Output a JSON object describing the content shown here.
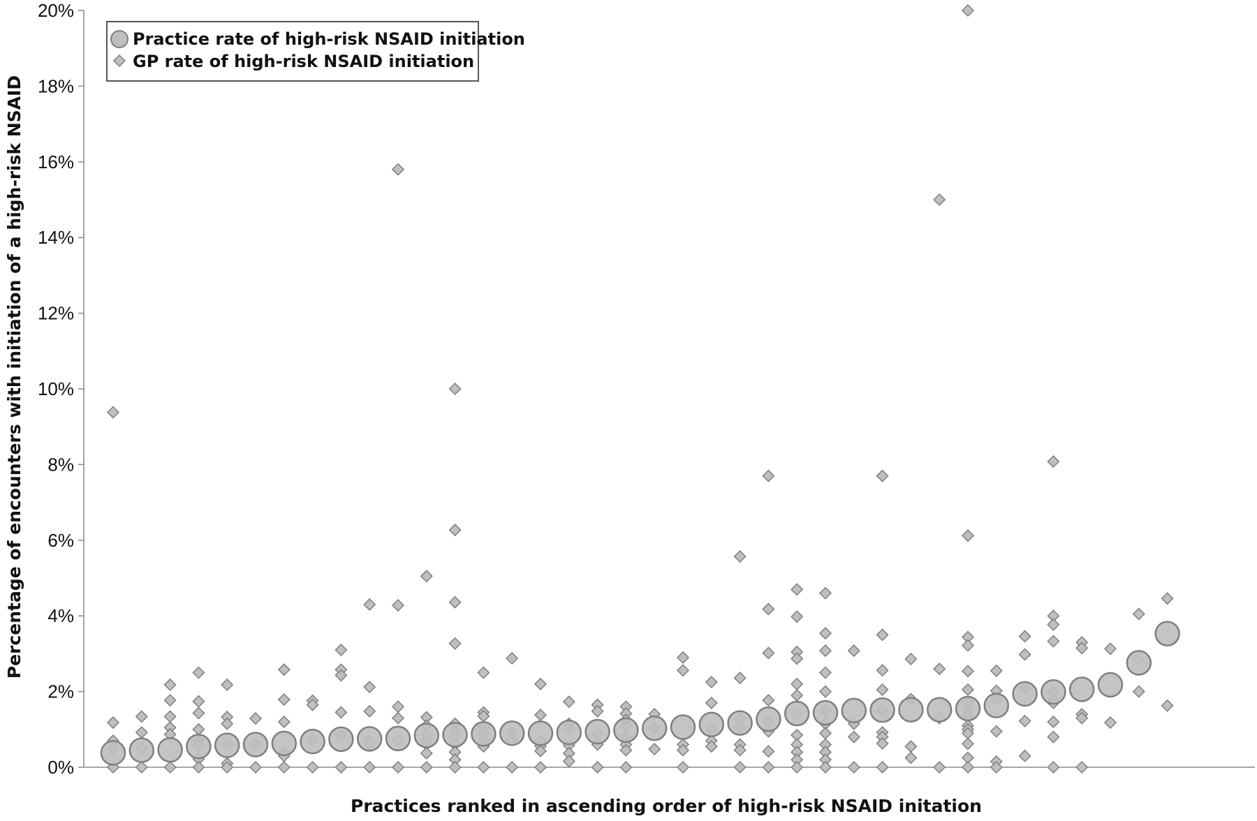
{
  "chart_data": {
    "type": "scatter",
    "xlabel": "Practices ranked in ascending order of high-risk NSAID initation",
    "ylabel": "Percentage of encounters with initiation of a high-risk NSAID",
    "ylim": [
      0,
      20
    ],
    "yticks": [
      "0%",
      "2%",
      "4%",
      "6%",
      "8%",
      "10%",
      "12%",
      "14%",
      "16%",
      "18%",
      "20%"
    ],
    "grid": false,
    "legend_position": "top-left",
    "colors": {
      "fill": "#bfbfbf",
      "stroke": "#7f7f7f"
    },
    "series": [
      {
        "name": "Practice rate of high-risk NSAID initiation",
        "marker": "circle",
        "points": [
          [
            1,
            0.38
          ],
          [
            2,
            0.45
          ],
          [
            3,
            0.46
          ],
          [
            4,
            0.55
          ],
          [
            5,
            0.58
          ],
          [
            6,
            0.6
          ],
          [
            7,
            0.63
          ],
          [
            8,
            0.68
          ],
          [
            9,
            0.74
          ],
          [
            10,
            0.75
          ],
          [
            11,
            0.76
          ],
          [
            12,
            0.84
          ],
          [
            13,
            0.86
          ],
          [
            14,
            0.88
          ],
          [
            15,
            0.9
          ],
          [
            16,
            0.9
          ],
          [
            17,
            0.92
          ],
          [
            18,
            0.94
          ],
          [
            19,
            0.98
          ],
          [
            20,
            1.03
          ],
          [
            21,
            1.06
          ],
          [
            22,
            1.13
          ],
          [
            23,
            1.17
          ],
          [
            24,
            1.27
          ],
          [
            25,
            1.42
          ],
          [
            26,
            1.44
          ],
          [
            27,
            1.5
          ],
          [
            28,
            1.51
          ],
          [
            29,
            1.52
          ],
          [
            30,
            1.52
          ],
          [
            31,
            1.55
          ],
          [
            32,
            1.63
          ],
          [
            33,
            1.94
          ],
          [
            34,
            1.99
          ],
          [
            35,
            2.06
          ],
          [
            36,
            2.18
          ],
          [
            37,
            2.76
          ],
          [
            38,
            3.53
          ]
        ]
      },
      {
        "name": "GP rate of high-risk NSAID initiation",
        "marker": "diamond",
        "points": [
          [
            1,
            9.38
          ],
          [
            1,
            1.18
          ],
          [
            1,
            0.7
          ],
          [
            1,
            0.5
          ],
          [
            1,
            0.0
          ],
          [
            2,
            1.34
          ],
          [
            2,
            0.92
          ],
          [
            2,
            0.5
          ],
          [
            2,
            0.0
          ],
          [
            3,
            2.18
          ],
          [
            3,
            1.77
          ],
          [
            3,
            1.34
          ],
          [
            3,
            1.05
          ],
          [
            3,
            0.87
          ],
          [
            3,
            0.0
          ],
          [
            4,
            2.5
          ],
          [
            4,
            1.74
          ],
          [
            4,
            1.43
          ],
          [
            4,
            1.0
          ],
          [
            4,
            0.7
          ],
          [
            4,
            0.57
          ],
          [
            4,
            0.22
          ],
          [
            4,
            0.0
          ],
          [
            5,
            2.18
          ],
          [
            5,
            1.33
          ],
          [
            5,
            1.15
          ],
          [
            5,
            0.6
          ],
          [
            5,
            0.1
          ],
          [
            5,
            0.0
          ],
          [
            6,
            1.29
          ],
          [
            6,
            0.6
          ],
          [
            6,
            0.0
          ],
          [
            7,
            2.58
          ],
          [
            7,
            1.79
          ],
          [
            7,
            1.2
          ],
          [
            7,
            0.38
          ],
          [
            7,
            0.3
          ],
          [
            7,
            0.0
          ],
          [
            8,
            1.76
          ],
          [
            8,
            1.65
          ],
          [
            8,
            0.7
          ],
          [
            8,
            0.0
          ],
          [
            9,
            3.1
          ],
          [
            9,
            2.58
          ],
          [
            9,
            2.43
          ],
          [
            9,
            1.45
          ],
          [
            9,
            0.85
          ],
          [
            9,
            0.0
          ],
          [
            10,
            4.3
          ],
          [
            10,
            2.12
          ],
          [
            10,
            1.48
          ],
          [
            10,
            0.7
          ],
          [
            10,
            0.62
          ],
          [
            10,
            0.0
          ],
          [
            11,
            15.8
          ],
          [
            11,
            4.28
          ],
          [
            11,
            1.6
          ],
          [
            11,
            1.3
          ],
          [
            11,
            0.7
          ],
          [
            11,
            0.0
          ],
          [
            12,
            5.05
          ],
          [
            12,
            1.32
          ],
          [
            12,
            1.1
          ],
          [
            12,
            0.85
          ],
          [
            12,
            0.7
          ],
          [
            12,
            0.6
          ],
          [
            12,
            0.37
          ],
          [
            12,
            0.0
          ],
          [
            13,
            10.0
          ],
          [
            13,
            6.27
          ],
          [
            13,
            4.36
          ],
          [
            13,
            3.27
          ],
          [
            13,
            1.15
          ],
          [
            13,
            0.95
          ],
          [
            13,
            0.8
          ],
          [
            13,
            0.6
          ],
          [
            13,
            0.4
          ],
          [
            13,
            0.2
          ],
          [
            13,
            0.0
          ],
          [
            14,
            2.5
          ],
          [
            14,
            1.45
          ],
          [
            14,
            1.35
          ],
          [
            14,
            1.07
          ],
          [
            14,
            0.88
          ],
          [
            14,
            0.71
          ],
          [
            14,
            0.55
          ],
          [
            14,
            0.0
          ],
          [
            15,
            2.88
          ],
          [
            15,
            0.93
          ],
          [
            15,
            0.72
          ],
          [
            15,
            0.0
          ],
          [
            16,
            2.2
          ],
          [
            16,
            1.38
          ],
          [
            16,
            0.7
          ],
          [
            16,
            0.56
          ],
          [
            16,
            0.43
          ],
          [
            16,
            0.0
          ],
          [
            17,
            1.73
          ],
          [
            17,
            1.15
          ],
          [
            17,
            1.0
          ],
          [
            17,
            0.58
          ],
          [
            17,
            0.37
          ],
          [
            17,
            0.16
          ],
          [
            18,
            1.65
          ],
          [
            18,
            1.48
          ],
          [
            18,
            0.87
          ],
          [
            18,
            0.6
          ],
          [
            18,
            0.0
          ],
          [
            19,
            1.6
          ],
          [
            19,
            1.42
          ],
          [
            19,
            1.25
          ],
          [
            19,
            1.1
          ],
          [
            19,
            0.8
          ],
          [
            19,
            0.6
          ],
          [
            19,
            0.45
          ],
          [
            19,
            0.0
          ],
          [
            20,
            1.4
          ],
          [
            20,
            1.05
          ],
          [
            20,
            0.48
          ],
          [
            21,
            2.9
          ],
          [
            21,
            2.56
          ],
          [
            21,
            0.6
          ],
          [
            21,
            0.45
          ],
          [
            21,
            0.0
          ],
          [
            22,
            2.25
          ],
          [
            22,
            1.7
          ],
          [
            22,
            1.0
          ],
          [
            22,
            0.7
          ],
          [
            22,
            0.55
          ],
          [
            23,
            5.57
          ],
          [
            23,
            2.36
          ],
          [
            23,
            1.28
          ],
          [
            23,
            1.05
          ],
          [
            23,
            0.6
          ],
          [
            23,
            0.45
          ],
          [
            23,
            0.0
          ],
          [
            24,
            7.7
          ],
          [
            24,
            4.18
          ],
          [
            24,
            3.02
          ],
          [
            24,
            1.77
          ],
          [
            24,
            1.2
          ],
          [
            24,
            0.95
          ],
          [
            24,
            0.42
          ],
          [
            24,
            0.0
          ],
          [
            25,
            4.7
          ],
          [
            25,
            3.98
          ],
          [
            25,
            3.05
          ],
          [
            25,
            2.87
          ],
          [
            25,
            2.2
          ],
          [
            25,
            1.9
          ],
          [
            25,
            1.4
          ],
          [
            25,
            0.85
          ],
          [
            25,
            0.6
          ],
          [
            25,
            0.4
          ],
          [
            25,
            0.2
          ],
          [
            25,
            0.0
          ],
          [
            26,
            4.6
          ],
          [
            26,
            3.54
          ],
          [
            26,
            3.08
          ],
          [
            26,
            2.5
          ],
          [
            26,
            2.0
          ],
          [
            26,
            1.5
          ],
          [
            26,
            1.15
          ],
          [
            26,
            0.9
          ],
          [
            26,
            0.6
          ],
          [
            26,
            0.4
          ],
          [
            26,
            0.2
          ],
          [
            26,
            0.0
          ],
          [
            27,
            3.08
          ],
          [
            27,
            1.15
          ],
          [
            27,
            0.8
          ],
          [
            27,
            0.0
          ],
          [
            28,
            7.7
          ],
          [
            28,
            3.5
          ],
          [
            28,
            2.56
          ],
          [
            28,
            2.05
          ],
          [
            28,
            1.5
          ],
          [
            28,
            0.92
          ],
          [
            28,
            0.8
          ],
          [
            28,
            0.63
          ],
          [
            28,
            0.0
          ],
          [
            29,
            2.86
          ],
          [
            29,
            1.8
          ],
          [
            29,
            0.55
          ],
          [
            29,
            0.25
          ],
          [
            30,
            15.0
          ],
          [
            30,
            2.6
          ],
          [
            30,
            1.3
          ],
          [
            30,
            0.0
          ],
          [
            31,
            20.0
          ],
          [
            31,
            6.12
          ],
          [
            31,
            3.44
          ],
          [
            31,
            3.22
          ],
          [
            31,
            2.54
          ],
          [
            31,
            2.05
          ],
          [
            31,
            1.72
          ],
          [
            31,
            1.5
          ],
          [
            31,
            1.35
          ],
          [
            31,
            1.1
          ],
          [
            31,
            1.0
          ],
          [
            31,
            0.9
          ],
          [
            31,
            0.62
          ],
          [
            31,
            0.25
          ],
          [
            31,
            0.0
          ],
          [
            32,
            2.55
          ],
          [
            32,
            2.02
          ],
          [
            32,
            1.8
          ],
          [
            32,
            0.95
          ],
          [
            32,
            0.15
          ],
          [
            32,
            0.0
          ],
          [
            33,
            3.46
          ],
          [
            33,
            2.98
          ],
          [
            33,
            2.1
          ],
          [
            33,
            1.22
          ],
          [
            33,
            0.3
          ],
          [
            34,
            8.08
          ],
          [
            34,
            4.0
          ],
          [
            34,
            3.77
          ],
          [
            34,
            3.33
          ],
          [
            34,
            2.0
          ],
          [
            34,
            1.8
          ],
          [
            34,
            1.7
          ],
          [
            34,
            1.2
          ],
          [
            34,
            0.8
          ],
          [
            34,
            0.0
          ],
          [
            35,
            3.3
          ],
          [
            35,
            3.15
          ],
          [
            35,
            1.4
          ],
          [
            35,
            1.3
          ],
          [
            35,
            0.0
          ],
          [
            36,
            3.13
          ],
          [
            36,
            1.18
          ],
          [
            37,
            4.05
          ],
          [
            37,
            2.84
          ],
          [
            37,
            2.0
          ],
          [
            38,
            4.46
          ],
          [
            38,
            1.63
          ]
        ]
      }
    ]
  }
}
